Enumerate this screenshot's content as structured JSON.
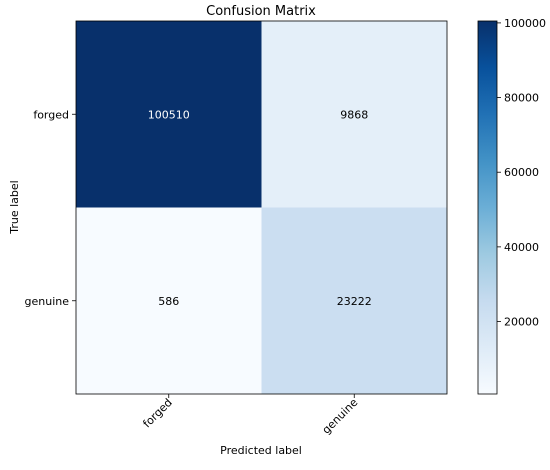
{
  "chart_data": {
    "type": "heatmap",
    "title": "Confusion Matrix",
    "xlabel": "Predicted label",
    "ylabel": "True label",
    "x_categories": [
      "forged",
      "genuine"
    ],
    "y_categories": [
      "forged",
      "genuine"
    ],
    "values": [
      [
        100510,
        9868
      ],
      [
        586,
        23222
      ]
    ],
    "cell_labels": [
      [
        "100510",
        "9868"
      ],
      [
        "586",
        "23222"
      ]
    ],
    "colormap": "Blues",
    "colormap_low": "#f7fbff",
    "colormap_high": "#08306b",
    "color_range": [
      586,
      100510
    ],
    "colorbar_ticks": [
      20000,
      40000,
      60000,
      80000,
      100000
    ],
    "colorbar_tick_labels": [
      "20000",
      "40000",
      "60000",
      "80000",
      "100000"
    ],
    "x_tick_rotation": "45 degrees",
    "grid": false,
    "legend": "colorbar-right"
  }
}
